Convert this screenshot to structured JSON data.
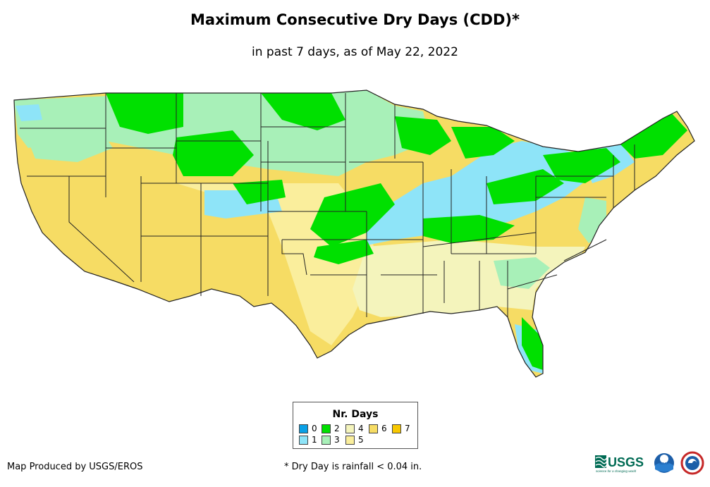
{
  "title": "Maximum Consecutive Dry Days (CDD)*",
  "subtitle": "in past 7 days, as of May 22, 2022",
  "legend": {
    "title": "Nr. Days",
    "items": [
      {
        "label": "0",
        "color": "#0aa0e6"
      },
      {
        "label": "1",
        "color": "#8ee4f8"
      },
      {
        "label": "2",
        "color": "#00e000"
      },
      {
        "label": "3",
        "color": "#a8f0b8"
      },
      {
        "label": "4",
        "color": "#f4f4bc"
      },
      {
        "label": "5",
        "color": "#faee9c"
      },
      {
        "label": "6",
        "color": "#f6dc64"
      },
      {
        "label": "7",
        "color": "#f8c800"
      }
    ]
  },
  "credit": "Map Produced by USGS/EROS",
  "footnote": "* Dry Day is rainfall < 0.04 in.",
  "logos": {
    "usgs_text": "USGS",
    "usgs_tagline": "science for a changing world",
    "noaa_text": "NOAA"
  }
}
